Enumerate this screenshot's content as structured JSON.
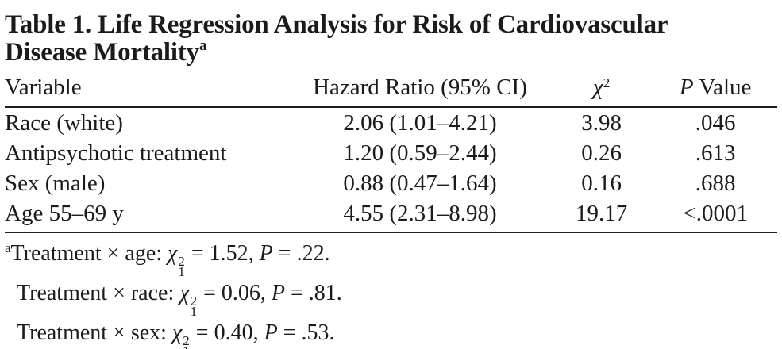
{
  "title": {
    "text": "Table 1. Life Regression Analysis for Risk of Cardiovascular Disease Mortality",
    "marker": "a"
  },
  "columns": {
    "variable": "Variable",
    "hazard_ratio": "Hazard Ratio (95% CI)",
    "chi_symbol": "χ",
    "chi_sup": "2",
    "p_symbol": "P",
    "p_rest": " Value"
  },
  "rows": [
    {
      "variable": "Race (white)",
      "hazard_ratio": "2.06 (1.01–4.21)",
      "chi_square": "3.98",
      "p_value": ".046"
    },
    {
      "variable": "Antipsychotic treatment",
      "hazard_ratio": "1.20 (0.59–2.44)",
      "chi_square": "0.26",
      "p_value": ".613"
    },
    {
      "variable": "Sex (male)",
      "hazard_ratio": "0.88 (0.47–1.64)",
      "chi_square": "0.16",
      "p_value": ".688"
    },
    {
      "variable": "Age 55–69 y",
      "hazard_ratio": "4.55 (2.31–8.98)",
      "chi_square": "19.17",
      "p_value": "<.0001"
    }
  ],
  "footnotes": [
    {
      "marker": "a",
      "label": "Treatment × age: ",
      "chi": "χ",
      "chi_sup": "2",
      "chi_sub": "1",
      "stat": " = 1.52, ",
      "p": "P",
      "pval": " = .22."
    },
    {
      "marker": "",
      "label": "Treatment × race: ",
      "chi": "χ",
      "chi_sup": "2",
      "chi_sub": "1",
      "stat": " = 0.06, ",
      "p": "P",
      "pval": " = .81."
    },
    {
      "marker": "",
      "label": "Treatment × sex: ",
      "chi": "χ",
      "chi_sup": "2",
      "chi_sub": "1",
      "stat": " = 0.40, ",
      "p": "P",
      "pval": " = .53."
    }
  ],
  "colors": {
    "ink": "#1b1b1b",
    "background": "#ffffff"
  }
}
